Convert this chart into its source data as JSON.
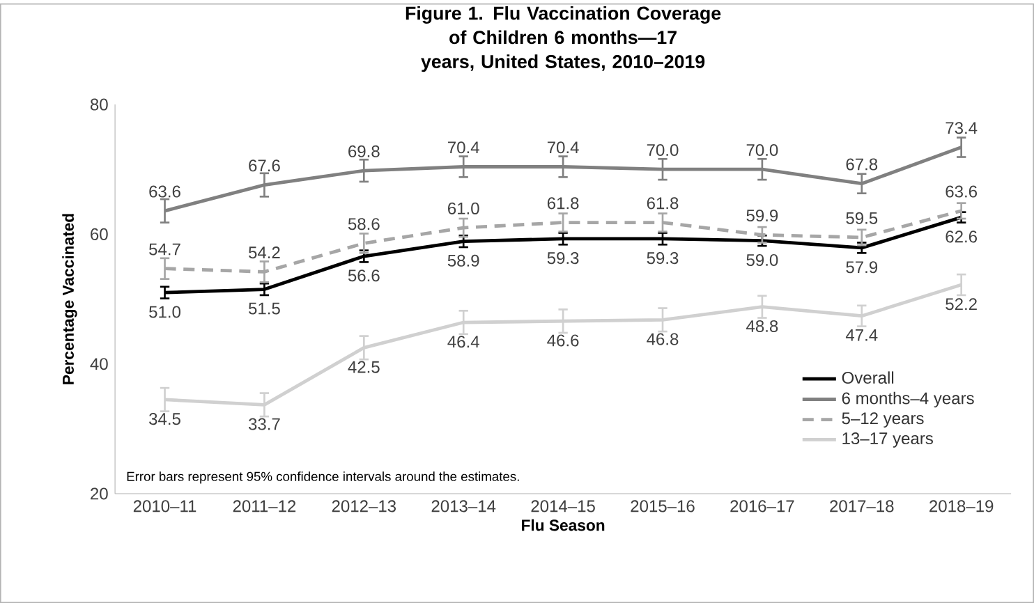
{
  "chart_data": {
    "type": "line",
    "title": "Figure 1. Flu Vaccination Coverage of Children 6 months—17 years, United States, 2010–2019",
    "xlabel": "Flu Season",
    "ylabel": "Percentage Vaccinated",
    "categories": [
      "2010–11",
      "2011–12",
      "2012–13",
      "2013–14",
      "2014–15",
      "2015–16",
      "2016–17",
      "2017–18",
      "2018–19"
    ],
    "ylim": [
      20,
      80
    ],
    "yticks": [
      20,
      40,
      60,
      80
    ],
    "grid": false,
    "legend": "bottom right",
    "marker": "none",
    "annotations": [
      "Error bars represent 95% confidence intervals around the estimates."
    ],
    "series": [
      {
        "name": "Overall",
        "color": "#000000",
        "line_style": "solid",
        "values": [
          51.0,
          51.5,
          56.6,
          58.9,
          59.3,
          59.3,
          59.0,
          57.9,
          62.6
        ],
        "value_labels": [
          "51.0",
          "51.5",
          "56.6",
          "58.9",
          "59.3",
          "59.3",
          "59.0",
          "57.9",
          "62.6"
        ],
        "errors": [
          0.9,
          0.9,
          0.9,
          0.9,
          0.9,
          0.9,
          0.8,
          0.8,
          0.8
        ]
      },
      {
        "name": "6 months–4 years",
        "color": "#808080",
        "line_style": "solid",
        "values": [
          63.6,
          67.6,
          69.8,
          70.4,
          70.4,
          70.0,
          70.0,
          67.8,
          73.4
        ],
        "value_labels": [
          "63.6",
          "67.6",
          "69.8",
          "70.4",
          "70.4",
          "70.0",
          "70.0",
          "67.8",
          "73.4"
        ],
        "errors": [
          1.8,
          1.8,
          1.7,
          1.6,
          1.6,
          1.6,
          1.6,
          1.5,
          1.5
        ]
      },
      {
        "name": "5–12 years",
        "color": "#a6a6a6",
        "line_style": "dashed",
        "values": [
          54.7,
          54.2,
          58.6,
          61.0,
          61.8,
          61.8,
          59.9,
          59.5,
          63.6
        ],
        "value_labels": [
          "54.7",
          "54.2",
          "58.6",
          "61.0",
          "61.8",
          "61.8",
          "59.9",
          "59.5",
          "63.6"
        ],
        "errors": [
          1.6,
          1.6,
          1.5,
          1.4,
          1.4,
          1.4,
          1.2,
          1.2,
          1.2
        ]
      },
      {
        "name": "13–17 years",
        "color": "#d0d0d0",
        "line_style": "solid",
        "values": [
          34.5,
          33.7,
          42.5,
          46.4,
          46.6,
          46.8,
          48.8,
          47.4,
          52.2
        ],
        "value_labels": [
          "34.5",
          "33.7",
          "42.5",
          "46.4",
          "46.6",
          "46.8",
          "48.8",
          "47.4",
          "52.2"
        ],
        "errors": [
          1.8,
          1.8,
          1.8,
          1.8,
          1.8,
          1.8,
          1.7,
          1.6,
          1.6
        ]
      }
    ]
  }
}
